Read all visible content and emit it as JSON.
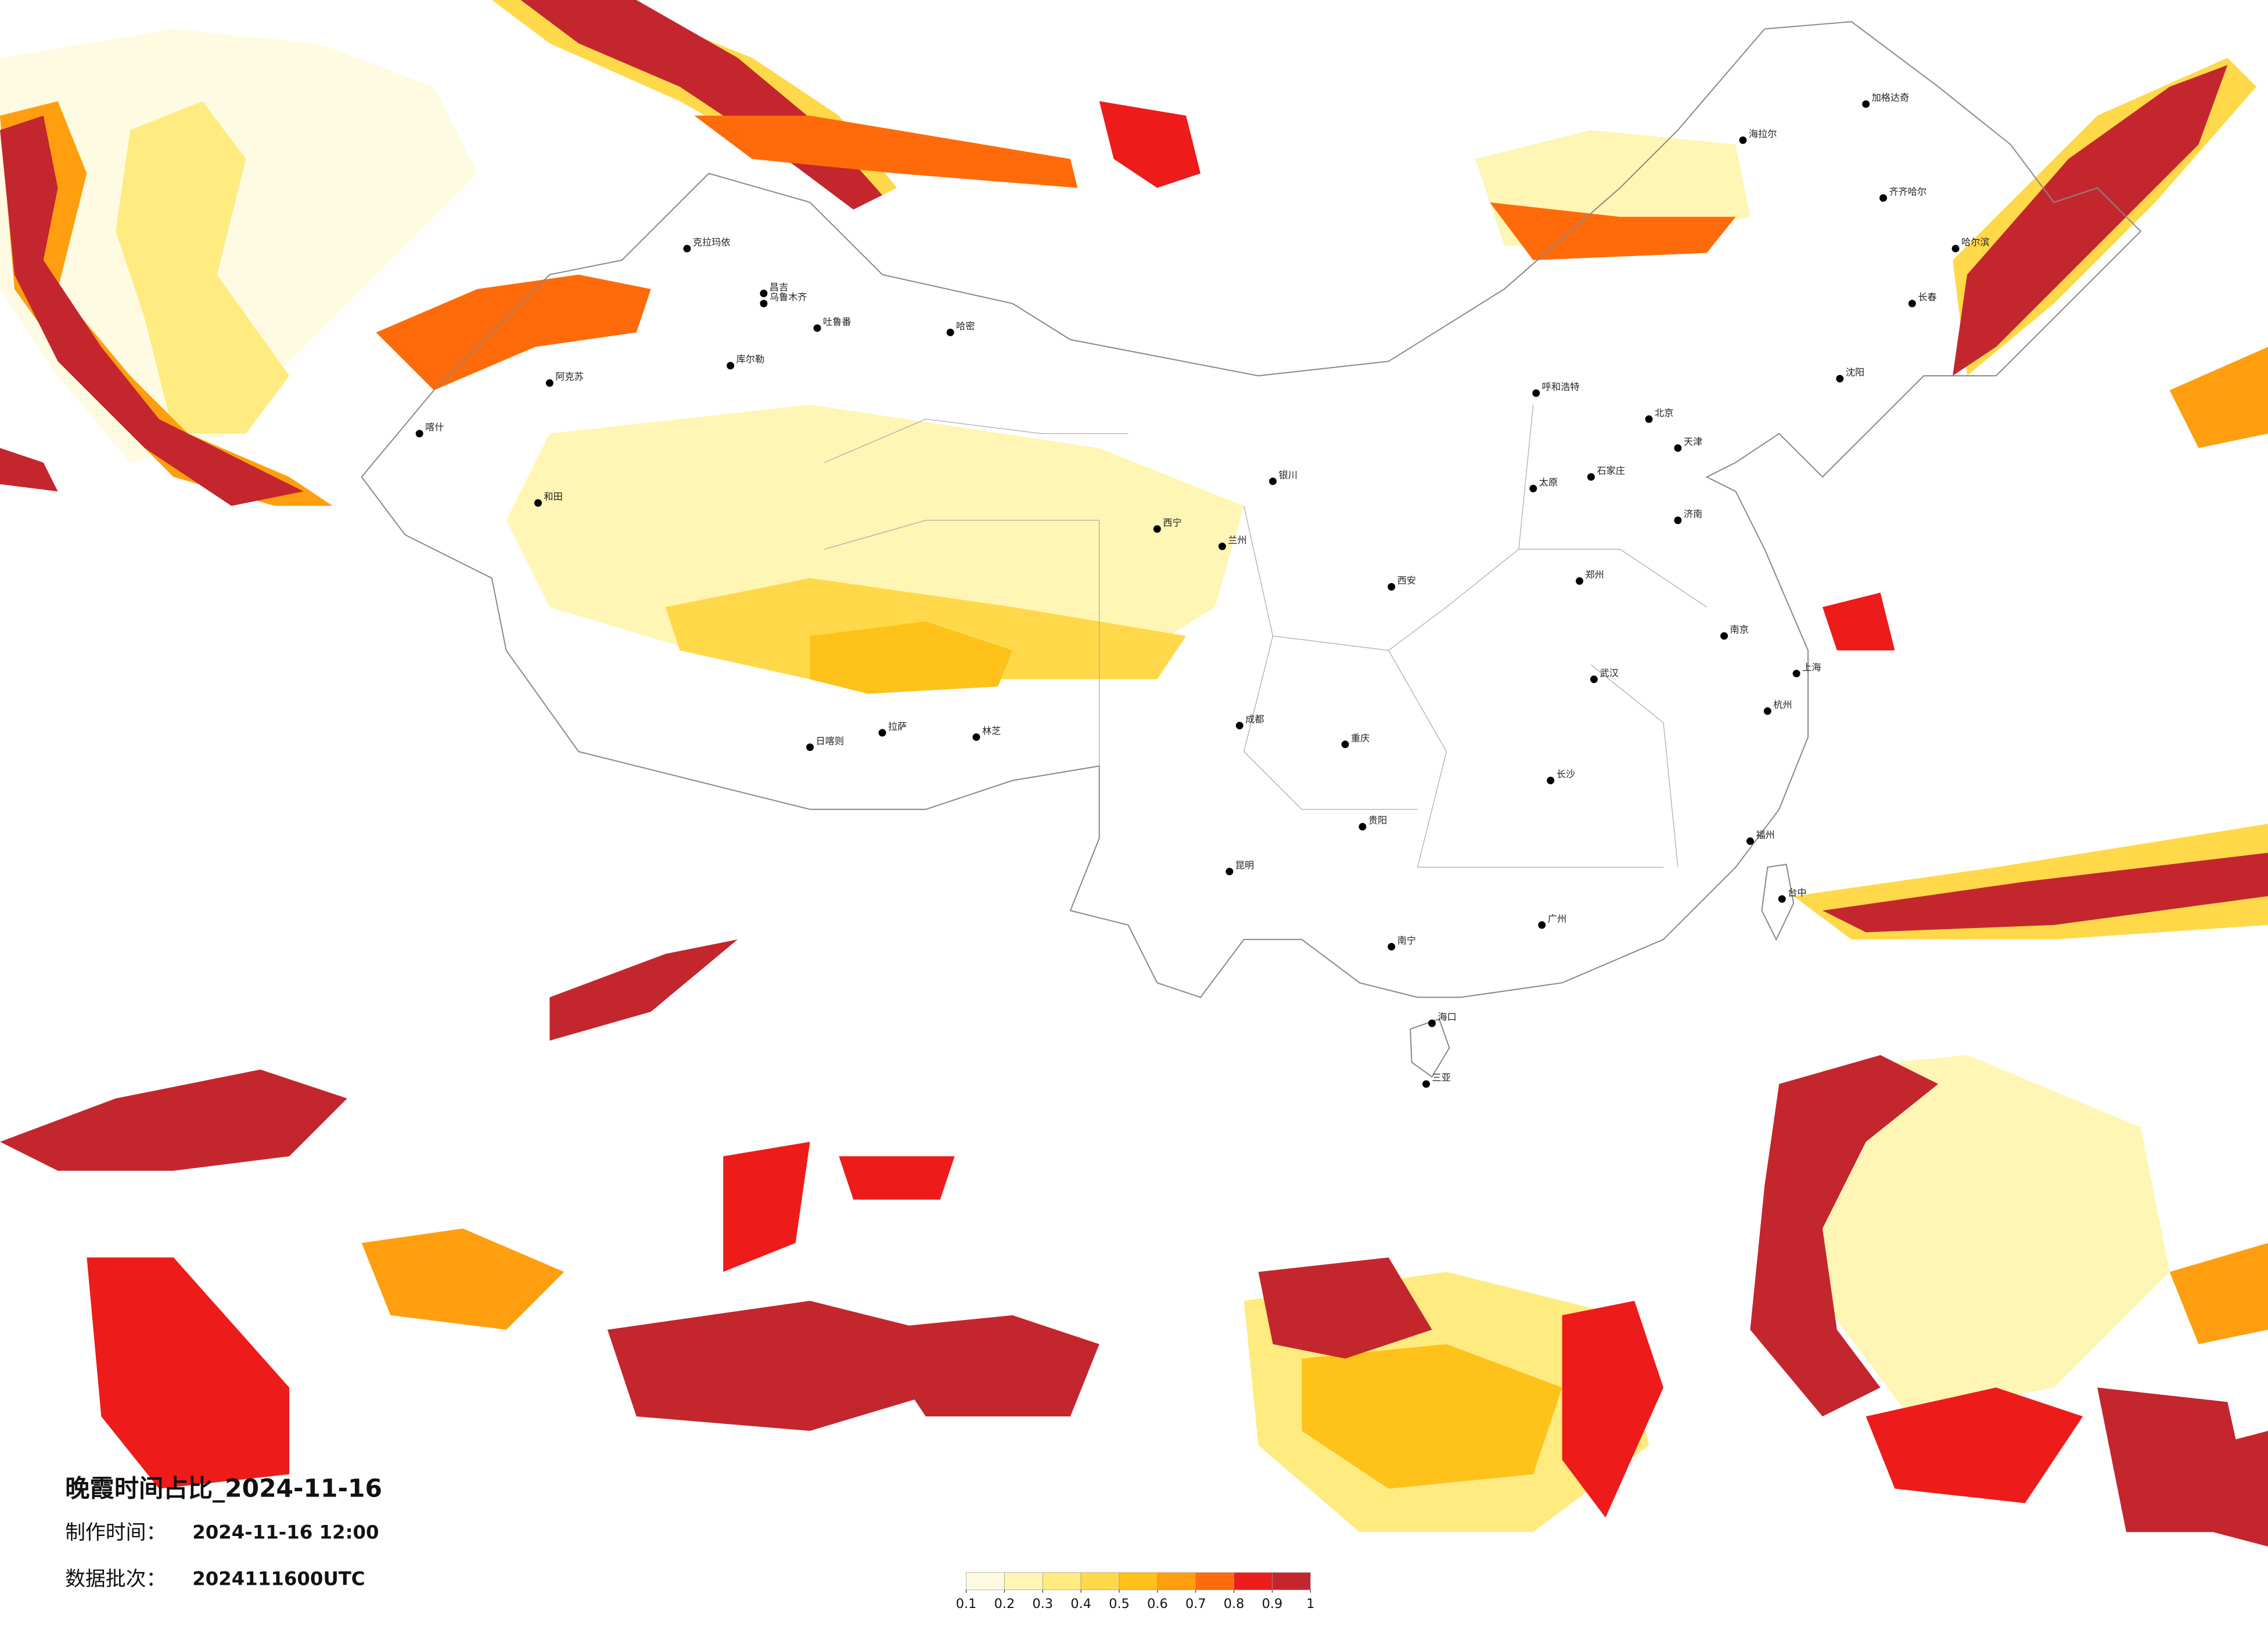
{
  "header": {
    "title": "晚霞时间占比_2024-11-16",
    "made_label": "制作时间：",
    "made_value": "2024-11-16 12:00",
    "batch_label": "数据批次：",
    "batch_value": "2024111600UTC"
  },
  "legend": {
    "ticks": [
      0.1,
      0.2,
      0.3,
      0.4,
      0.5,
      0.6,
      0.7,
      0.8,
      0.9,
      1
    ],
    "colors": [
      "#fffbe3",
      "#fff5b5",
      "#ffeb80",
      "#ffd94a",
      "#ffc21a",
      "#ff9f0f",
      "#ff6b0a",
      "#ee1b1b",
      "#c4262e"
    ]
  },
  "cities": [
    "克拉玛依",
    "乌鲁木齐",
    "昌吉",
    "吐鲁番",
    "哈密",
    "库尔勒",
    "阿克苏",
    "喀什",
    "和田",
    "日喀则",
    "拉萨",
    "林芝",
    "西宁",
    "兰州",
    "银川",
    "呼和浩特",
    "北京",
    "天津",
    "石家庄",
    "太原",
    "济南",
    "郑州",
    "西安",
    "成都",
    "重庆",
    "武汉",
    "南京",
    "上海",
    "杭州",
    "长沙",
    "贵阳",
    "昆明",
    "南宁",
    "广州",
    "福州",
    "台中",
    "海口",
    "三亚",
    "哈尔滨",
    "长春",
    "沈阳",
    "齐齐哈尔",
    "海拉尔",
    "加格达奇"
  ]
}
